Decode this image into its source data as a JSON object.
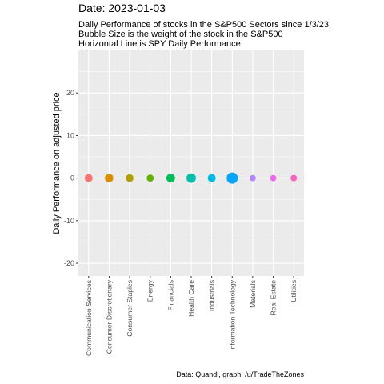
{
  "chart_data": {
    "type": "scatter",
    "title": "Date: 2023-01-03",
    "subtitle": [
      "Daily Performance of stocks in the S&P500 Sectors since 1/3/23",
      "Bubble Size is the weight of the stock in the S&P500",
      "Horizontal Line is SPY Daily Performance."
    ],
    "ylabel": "Daily Performance on adjusted price",
    "xlabel": "",
    "caption": "Data: Quandl, graph: /u/TradeTheZones",
    "categories": [
      "Communication Services",
      "Consumer Discretionary",
      "Consumer Staples",
      "Energy",
      "Financials",
      "Health Care",
      "Industrials",
      "Information Technology",
      "Materials",
      "Real Estate",
      "Utilities"
    ],
    "values": [
      0,
      0,
      0,
      0,
      0,
      0,
      0,
      0,
      0,
      0,
      0
    ],
    "bubble_weight": [
      0.08,
      0.1,
      0.07,
      0.05,
      0.11,
      0.15,
      0.08,
      0.26,
      0.025,
      0.025,
      0.03
    ],
    "colors": [
      "#F8766D",
      "#DB8E00",
      "#AEA200",
      "#64B200",
      "#00BD5C",
      "#00C1A7",
      "#00BADE",
      "#00A6FF",
      "#B385FF",
      "#EF67EB",
      "#FF63B6"
    ],
    "spy_line": 0,
    "spy_line_color": "#FF0000",
    "ylim": [
      -23,
      30
    ],
    "yticks": [
      -20,
      -10,
      0,
      10,
      20
    ],
    "grid": true,
    "panel_background": "#EBEBEB"
  }
}
